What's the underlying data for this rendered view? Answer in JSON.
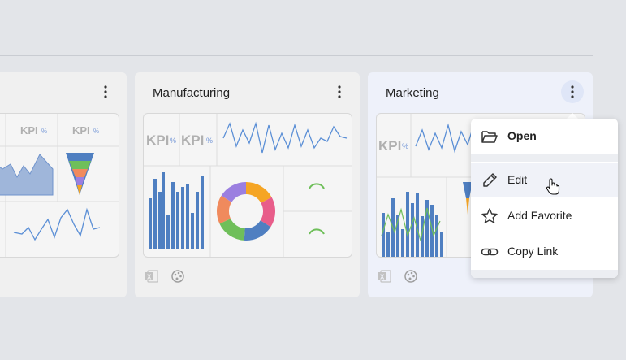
{
  "cards": [
    {
      "title": "",
      "kpi": [
        "KPI",
        "KPI"
      ]
    },
    {
      "title": "Manufacturing",
      "kpi": [
        "KPI",
        "KPI"
      ]
    },
    {
      "title": "Marketing",
      "kpi": [
        "KPI"
      ]
    }
  ],
  "kpi_suffix": "%",
  "menu": {
    "items": [
      {
        "label": "Open",
        "icon": "folder-open-icon"
      },
      {
        "label": "Edit",
        "icon": "pencil-icon"
      },
      {
        "label": "Add Favorite",
        "icon": "star-icon"
      },
      {
        "label": "Copy Link",
        "icon": "link-icon"
      }
    ],
    "hovered": "Edit"
  },
  "colors": {
    "background": "#e3e5e9",
    "card": "#f0f0f0",
    "card_active": "#eef1fa",
    "chart_blue": "#4f7fc1",
    "line_blue": "#5b8fd6",
    "green": "#6fbf5a",
    "orange": "#f5a524",
    "pink": "#e85d8a",
    "purple": "#9b7fe0",
    "salmon": "#f08a5d",
    "kpi_gray": "#b0b0b0"
  },
  "donut_slices": [
    {
      "color": "#f5a524",
      "value": 0.17
    },
    {
      "color": "#e85d8a",
      "value": 0.17
    },
    {
      "color": "#4f7fc1",
      "value": 0.17
    },
    {
      "color": "#6fbf5a",
      "value": 0.17
    },
    {
      "color": "#f08a5d",
      "value": 0.16
    },
    {
      "color": "#9b7fe0",
      "value": 0.16
    }
  ]
}
